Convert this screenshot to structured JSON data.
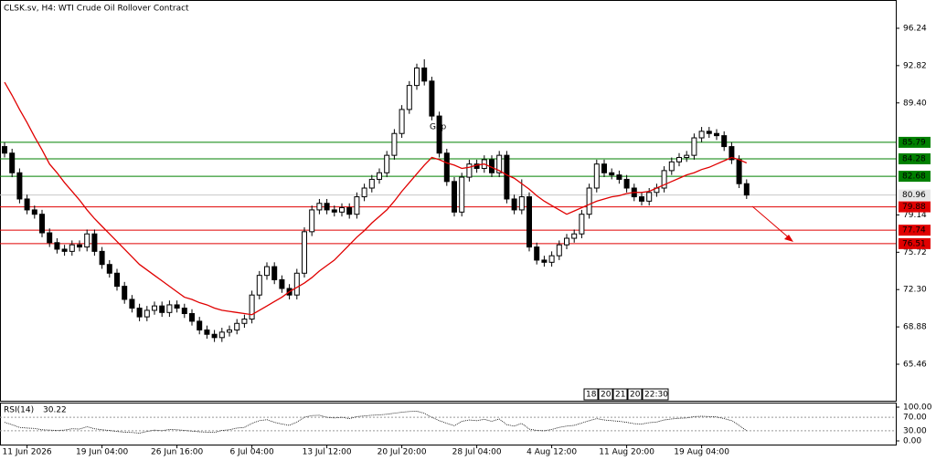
{
  "chart_data": {
    "type": "candlestick",
    "title": "CLSK.sv, H4:  WTI Crude Oil Rollover Contract",
    "categories": [
      null,
      null,
      null,
      "11 Jun 2026",
      null,
      null,
      null,
      null,
      null,
      null,
      null,
      null,
      null,
      "19 Jun 04:00",
      null,
      null,
      null,
      null,
      null,
      null,
      null,
      null,
      null,
      "26 Jun 16:00",
      null,
      null,
      null,
      null,
      null,
      null,
      null,
      null,
      null,
      "6 Jul 04:00",
      null,
      null,
      null,
      null,
      null,
      null,
      null,
      null,
      null,
      "13 Jul 12:00",
      null,
      null,
      null,
      null,
      null,
      null,
      null,
      null,
      null,
      "20 Jul 20:00",
      null,
      null,
      null,
      null,
      null,
      null,
      null,
      null,
      null,
      "28 Jul 04:00",
      null,
      null,
      null,
      null,
      null,
      null,
      null,
      null,
      null,
      "4 Aug 12:00",
      null,
      null,
      null,
      null,
      null,
      null,
      null,
      null,
      null,
      "11 Aug 20:00",
      null,
      null,
      null,
      null,
      null,
      null,
      null,
      null,
      null,
      "19 Aug 04:00",
      null,
      null,
      null,
      null,
      null,
      null
    ],
    "open": [
      85.4,
      84.8,
      83.0,
      80.6,
      79.6,
      79.2,
      77.5,
      76.6,
      76.0,
      75.8,
      76.4,
      76.2,
      77.4,
      75.8,
      74.6,
      73.8,
      72.6,
      71.4,
      70.6,
      69.8,
      70.4,
      70.8,
      70.2,
      70.9,
      70.6,
      70.1,
      69.4,
      68.6,
      68.2,
      67.9,
      68.4,
      68.6,
      69.2,
      69.6,
      71.8,
      73.6,
      74.4,
      73.2,
      72.4,
      71.8,
      73.8,
      77.6,
      79.6,
      80.2,
      79.6,
      79.4,
      79.8,
      79.2,
      80.8,
      81.6,
      82.4,
      83.0,
      84.6,
      86.6,
      88.8,
      91.0,
      92.6,
      91.4,
      88.2,
      84.8,
      82.2,
      79.4,
      82.6,
      83.8,
      83.4,
      84.2,
      83.0,
      84.6,
      80.6,
      79.6,
      80.8,
      76.2,
      75.0,
      74.8,
      75.4,
      76.4,
      77.0,
      77.4,
      79.2,
      81.6,
      83.8,
      83.0,
      82.8,
      82.4,
      81.6,
      80.8,
      80.4,
      81.2,
      81.6,
      83.2,
      84.0,
      84.4,
      84.6,
      86.2,
      86.8,
      86.6,
      86.4,
      85.4,
      84.2,
      82.0
    ],
    "high": [
      85.8,
      85.2,
      83.4,
      81.0,
      80.0,
      79.6,
      77.9,
      77.0,
      76.4,
      76.8,
      76.8,
      77.8,
      77.8,
      76.2,
      75.0,
      74.2,
      73.0,
      71.8,
      71.0,
      70.8,
      71.2,
      71.2,
      71.3,
      71.3,
      71.0,
      70.5,
      69.8,
      69.0,
      68.6,
      68.8,
      69.0,
      69.6,
      70.0,
      72.2,
      74.0,
      74.8,
      74.8,
      73.6,
      72.8,
      74.2,
      78.0,
      80.0,
      80.6,
      80.6,
      80.0,
      80.2,
      80.2,
      81.2,
      82.0,
      82.8,
      83.4,
      85.0,
      87.0,
      89.2,
      91.4,
      93.0,
      93.4,
      91.8,
      88.6,
      85.2,
      82.6,
      83.0,
      84.2,
      84.2,
      84.6,
      84.6,
      85.0,
      85.0,
      81.0,
      82.4,
      81.2,
      76.6,
      75.4,
      75.8,
      76.8,
      77.4,
      77.8,
      79.6,
      82.0,
      84.2,
      84.2,
      83.4,
      83.2,
      82.8,
      82.0,
      81.2,
      81.6,
      82.0,
      83.6,
      84.4,
      84.8,
      85.0,
      86.6,
      87.2,
      87.2,
      87.0,
      86.8,
      85.8,
      84.6,
      82.4
    ],
    "low": [
      84.4,
      82.6,
      80.2,
      79.2,
      78.8,
      77.1,
      76.2,
      75.6,
      75.4,
      75.4,
      75.8,
      75.8,
      75.4,
      74.2,
      73.4,
      72.2,
      71.0,
      70.2,
      69.4,
      69.4,
      70.0,
      69.8,
      69.8,
      70.2,
      69.7,
      69.0,
      68.2,
      67.8,
      67.5,
      67.5,
      68.0,
      68.2,
      68.8,
      69.2,
      71.4,
      73.2,
      72.8,
      72.0,
      71.4,
      71.4,
      73.4,
      77.2,
      79.2,
      79.2,
      79.0,
      79.0,
      78.8,
      78.8,
      80.4,
      81.2,
      82.0,
      82.6,
      84.2,
      86.2,
      88.4,
      90.6,
      91.0,
      87.8,
      84.4,
      81.8,
      79.0,
      79.0,
      82.2,
      83.0,
      83.0,
      82.6,
      82.6,
      80.2,
      79.2,
      79.2,
      75.8,
      74.6,
      74.4,
      74.4,
      75.0,
      76.0,
      76.6,
      77.0,
      78.8,
      81.2,
      82.6,
      82.4,
      82.0,
      81.2,
      80.4,
      80.0,
      80.0,
      80.8,
      81.2,
      82.8,
      83.6,
      84.0,
      84.2,
      85.8,
      86.2,
      86.0,
      85.0,
      83.8,
      81.6,
      80.6
    ],
    "close": [
      84.8,
      83.0,
      80.6,
      79.6,
      79.2,
      77.5,
      76.6,
      76.0,
      75.8,
      76.4,
      76.2,
      77.4,
      75.8,
      74.6,
      73.8,
      72.6,
      71.4,
      70.6,
      69.8,
      70.4,
      70.8,
      70.2,
      70.9,
      70.6,
      70.1,
      69.4,
      68.6,
      68.2,
      67.9,
      68.4,
      68.6,
      69.2,
      69.6,
      71.8,
      73.6,
      74.4,
      73.2,
      72.4,
      71.8,
      73.8,
      77.6,
      79.6,
      80.2,
      79.6,
      79.4,
      79.8,
      79.2,
      80.8,
      81.6,
      82.4,
      83.0,
      84.6,
      86.6,
      88.8,
      91.0,
      92.6,
      91.4,
      88.2,
      84.8,
      82.2,
      79.4,
      82.6,
      83.8,
      83.4,
      84.2,
      83.0,
      84.6,
      80.6,
      79.6,
      80.8,
      76.2,
      75.0,
      74.8,
      75.4,
      76.4,
      77.0,
      77.4,
      79.2,
      81.6,
      83.8,
      83.0,
      82.8,
      82.4,
      81.6,
      80.8,
      80.4,
      81.2,
      81.6,
      83.2,
      84.0,
      84.4,
      84.6,
      86.2,
      86.8,
      86.6,
      86.4,
      85.4,
      84.2,
      82.0,
      80.96
    ],
    "color": "#000000",
    "ylim": [
      62.03,
      98.83
    ],
    "yticks": [
      96.24,
      92.82,
      {
        "value": 89.4,
        "label": "89.40"
      },
      79.14,
      75.72,
      {
        "value": 72.3,
        "label": "72.30"
      },
      68.88,
      65.46
    ],
    "moving_average": {
      "color": "#e00000",
      "values": [
        91.3,
        90.1,
        88.8,
        87.6,
        86.3,
        85.1,
        83.8,
        83.0,
        82.1,
        81.3,
        80.5,
        79.6,
        78.8,
        78.1,
        77.4,
        76.7,
        76.0,
        75.3,
        74.6,
        74.1,
        73.6,
        73.1,
        72.6,
        72.1,
        71.6,
        71.4,
        71.1,
        70.9,
        70.6,
        70.4,
        70.3,
        70.2,
        70.1,
        70.0,
        70.4,
        70.8,
        71.2,
        71.6,
        72.1,
        72.5,
        72.9,
        73.4,
        74.0,
        74.5,
        75.0,
        75.7,
        76.4,
        77.1,
        77.7,
        78.4,
        79.0,
        79.6,
        80.4,
        81.3,
        82.1,
        82.9,
        83.7,
        84.4,
        84.2,
        83.9,
        83.7,
        83.4,
        83.5,
        83.7,
        83.8,
        83.5,
        83.2,
        82.8,
        82.5,
        82.0,
        81.5,
        80.9,
        80.4,
        80.0,
        79.6,
        79.2,
        79.5,
        79.8,
        80.1,
        80.4,
        80.6,
        80.8,
        80.9,
        81.1,
        81.2,
        81.2,
        81.3,
        81.6,
        81.9,
        82.2,
        82.5,
        82.8,
        83.0,
        83.3,
        83.5,
        83.8,
        84.1,
        84.4,
        84.2,
        83.9
      ]
    },
    "levels": [
      {
        "value": 85.79,
        "color": "#008000"
      },
      {
        "value": 84.28,
        "color": "#008000"
      },
      {
        "value": 82.68,
        "color": "#008000"
      },
      {
        "value": 79.88,
        "color": "#e00000"
      },
      {
        "value": 77.74,
        "color": "#e00000"
      },
      {
        "value": 76.51,
        "color": "#e00000"
      }
    ],
    "current_price": 80.96,
    "annotation": "Gap",
    "time_markers": [
      "18:",
      "20",
      "21",
      "20",
      "22:30"
    ],
    "rsi": {
      "label": "RSI(14)",
      "ylim": [
        0,
        100
      ],
      "yticks": [
        {
          "value": 100,
          "label": "100.00"
        },
        {
          "value": 70,
          "label": "70.00"
        },
        {
          "value": 30,
          "label": "30.00"
        },
        {
          "value": 0,
          "label": "0.00"
        }
      ],
      "values": [
        55,
        48,
        40,
        38,
        37,
        33,
        32,
        31,
        32,
        36,
        35,
        42,
        36,
        33,
        31,
        28,
        26,
        25,
        23,
        28,
        32,
        30,
        34,
        33,
        31,
        29,
        27,
        26,
        25,
        31,
        33,
        38,
        40,
        52,
        60,
        63,
        55,
        50,
        46,
        56,
        70,
        75,
        76,
        70,
        68,
        70,
        66,
        72,
        74,
        76,
        77,
        79,
        82,
        85,
        87,
        88,
        82,
        70,
        60,
        52,
        45,
        58,
        62,
        60,
        64,
        58,
        65,
        48,
        44,
        52,
        35,
        31,
        30,
        34,
        40,
        44,
        46,
        53,
        60,
        66,
        62,
        60,
        58,
        55,
        51,
        50,
        54,
        56,
        62,
        65,
        67,
        68,
        72,
        73,
        72,
        71,
        66,
        60,
        46,
        30.22
      ]
    }
  }
}
